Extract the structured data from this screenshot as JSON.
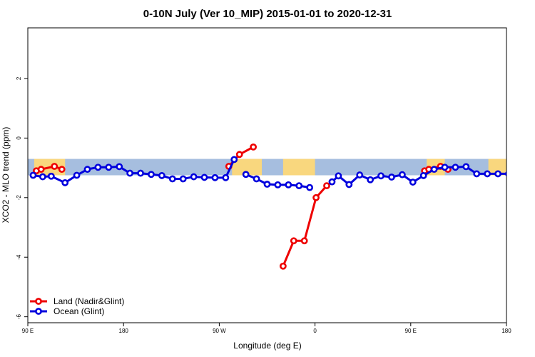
{
  "chart_data": {
    "type": "line",
    "title": "0-10N July (Ver 10_MIP)   2015-01-01 to 2020-12-31",
    "xlabel": "Longitude (deg E)",
    "ylabel": "XCO2 - MLO trend (ppm)",
    "xlim": [
      90,
      450
    ],
    "ylim": [
      -6.2,
      3.7
    ],
    "x_ticks": [
      {
        "value": 90,
        "label": "90 E"
      },
      {
        "value": 180,
        "label": "180"
      },
      {
        "value": 270,
        "label": "90 W"
      },
      {
        "value": 360,
        "label": "0"
      },
      {
        "value": 450,
        "label": "90 E"
      },
      {
        "value": 540,
        "label": "180"
      }
    ],
    "y_ticks": [
      {
        "value": 2,
        "label": "2"
      },
      {
        "value": 0,
        "label": "0"
      },
      {
        "value": -2,
        "label": "-2"
      },
      {
        "value": -4,
        "label": "-4"
      },
      {
        "value": -6,
        "label": "-6"
      }
    ],
    "x_axis_span": [
      90,
      540
    ],
    "band": {
      "ymin": -1.25,
      "ymax": -0.7,
      "ocean_color": "#a6bedf",
      "land_color": "#f9d77e"
    },
    "land_segments_x": [
      [
        96,
        125
      ],
      [
        282,
        310
      ],
      [
        330,
        360
      ],
      [
        465,
        482
      ],
      [
        523,
        540
      ]
    ],
    "legend": {
      "position": "bottom-left",
      "entries": [
        {
          "label": "Land (Nadir&Glint)",
          "color": "#ee0000"
        },
        {
          "label": "Ocean (Glint)",
          "color": "#0000dd"
        }
      ]
    },
    "series": [
      {
        "name": "Land (Nadir&Glint)",
        "color": "#ee0000",
        "segments": [
          {
            "x": [
              98,
              102.5,
              115,
              122
            ],
            "y": [
              -1.1,
              -1.05,
              -0.95,
              -1.05
            ]
          },
          {
            "x": [
              279,
              289,
              302
            ],
            "y": [
              -0.95,
              -0.55,
              -0.3
            ]
          },
          {
            "x": [
              330,
              340,
              350,
              361,
              371
            ],
            "y": [
              -4.3,
              -3.45,
              -3.45,
              -2.0,
              -1.6
            ]
          },
          {
            "x": [
              463,
              467,
              478,
              485
            ],
            "y": [
              -1.1,
              -1.05,
              -0.95,
              -1.05
            ]
          }
        ]
      },
      {
        "name": "Ocean (Glint)",
        "color": "#0000dd",
        "segments": [
          {
            "x": [
              95,
              104,
              112,
              125,
              136,
              146,
              156,
              166,
              176,
              186,
              196,
              206,
              216,
              226,
              236,
              246,
              256,
              266,
              276,
              284
            ],
            "y": [
              -1.25,
              -1.3,
              -1.28,
              -1.5,
              -1.25,
              -1.05,
              -0.98,
              -0.98,
              -0.96,
              -1.18,
              -1.18,
              -1.22,
              -1.26,
              -1.37,
              -1.37,
              -1.3,
              -1.32,
              -1.33,
              -1.33,
              -0.72
            ]
          },
          {
            "x": [
              295,
              305,
              315,
              325,
              335,
              345,
              355
            ],
            "y": [
              -1.22,
              -1.37,
              -1.55,
              -1.57,
              -1.57,
              -1.6,
              -1.66
            ]
          },
          {
            "x": [
              376,
              382,
              392,
              402,
              412,
              422,
              432,
              442,
              452,
              462,
              472,
              482,
              492,
              502,
              512,
              522,
              532,
              542
            ],
            "y": [
              -1.47,
              -1.27,
              -1.56,
              -1.24,
              -1.4,
              -1.27,
              -1.31,
              -1.23,
              -1.48,
              -1.26,
              -1.05,
              -0.98,
              -0.98,
              -0.96,
              -1.2,
              -1.2,
              -1.2,
              -1.2
            ]
          }
        ]
      }
    ]
  }
}
